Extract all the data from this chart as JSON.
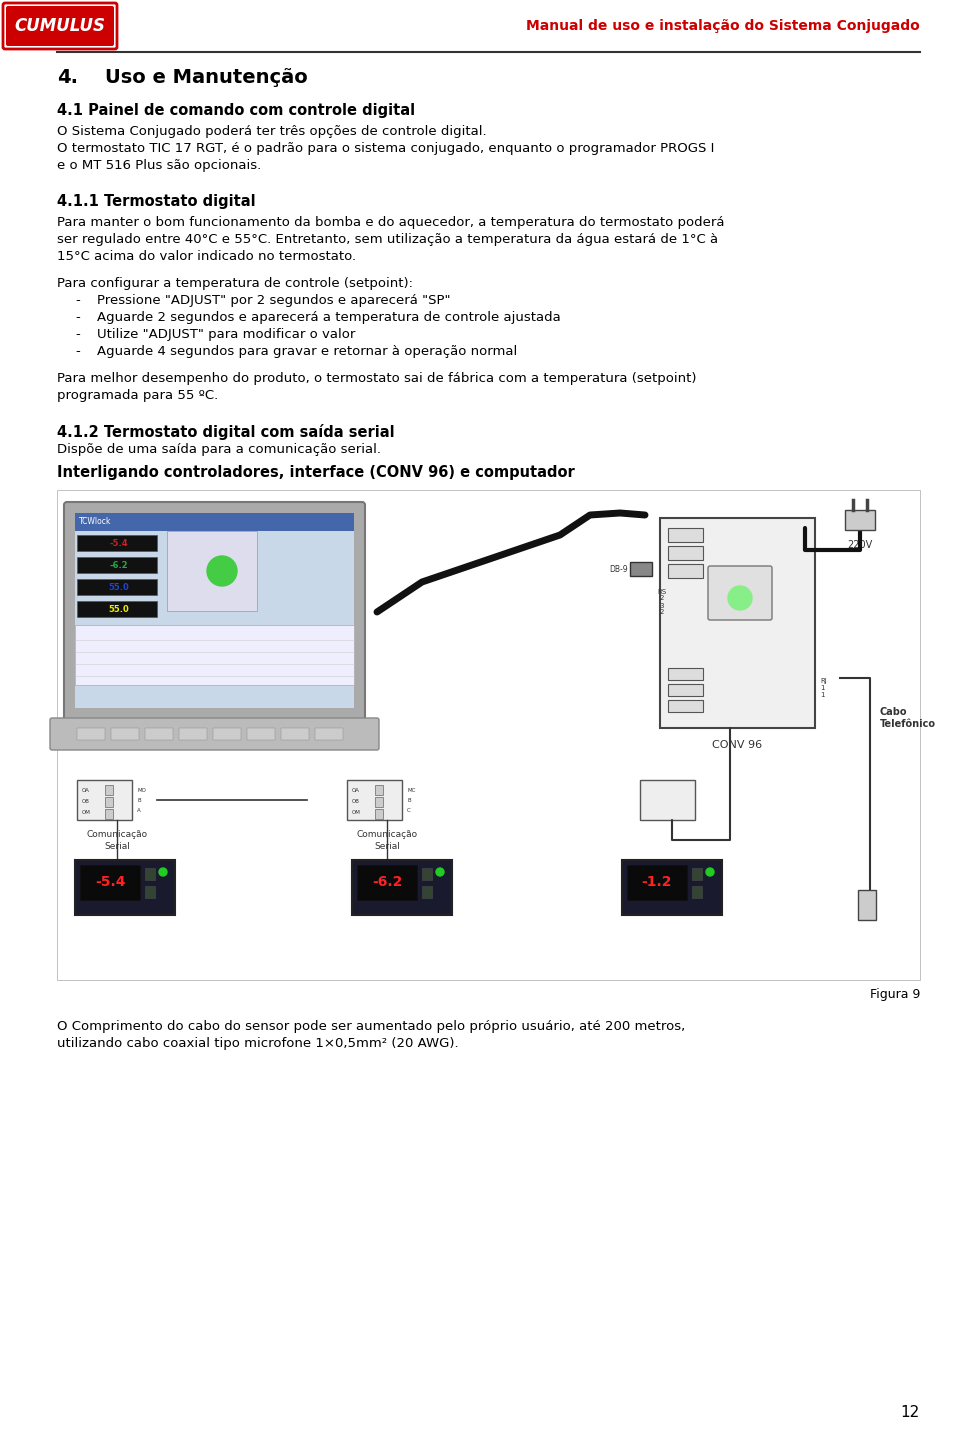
{
  "bg_color": "#ffffff",
  "header_title": "Manual de uso e instalação do Sistema Conjugado",
  "header_title_color": "#cc0000",
  "logo_text": "CUMULUS",
  "section_title": "Uso e Manutenção",
  "sub1_title": "4.1 Painel de comando com controle digital",
  "sub1_lines": [
    "O Sistema Conjugado poderá ter três opções de controle digital.",
    "O termostato TIC 17 RGT, é o padrão para o sistema conjugado, enquanto o programador PROGS I",
    "e o MT 516 Plus são opcionais."
  ],
  "sub2_title": "4.1.1 Termostato digital",
  "sub2_lines": [
    "Para manter o bom funcionamento da bomba e do aquecedor, a temperatura do termostato poderá",
    "ser regulado entre 40°C e 55°C. Entretanto, sem utilização a temperatura da água estará de 1°C à",
    "15°C acima do valor indicado no termostato."
  ],
  "sub2b_line0": "Para configurar a temperatura de controle (setpoint):",
  "sub2b_bullets": [
    "Pressione \"ADJUST\" por 2 segundos e aparecerá \"SP\"",
    "Aguarde 2 segundos e aparecerá a temperatura de controle ajustada",
    "Utilize \"ADJUST\" para modificar o valor",
    "Aguarde 4 segundos para gravar e retornar à operação normal"
  ],
  "sub2c_lines": [
    "Para melhor desempenho do produto, o termostato sai de fábrica com a temperatura (setpoint)",
    "programada para 55 ºC."
  ],
  "sub3_title": "4.1.2 Termostato digital com saída serial",
  "sub3_line": "Dispõe de uma saída para a comunicação serial.",
  "sub4_title": "Interligando controladores, interface (CONV 96) e computador",
  "fig_caption": "Figura 9",
  "sub4_lines": [
    "O Comprimento do cabo do sensor pode ser aumentado pelo próprio usuário, até 200 metros,",
    "utilizando cabo coaxial tipo microfone 1×0,5mm² (20 AWG)."
  ],
  "page_number": "12",
  "text_color": "#000000",
  "red_color": "#cc0000",
  "ml": 57,
  "mr": 920,
  "lh": 17,
  "fs_body": 9.5,
  "fs_heading": 10.5,
  "fs_title": 14
}
